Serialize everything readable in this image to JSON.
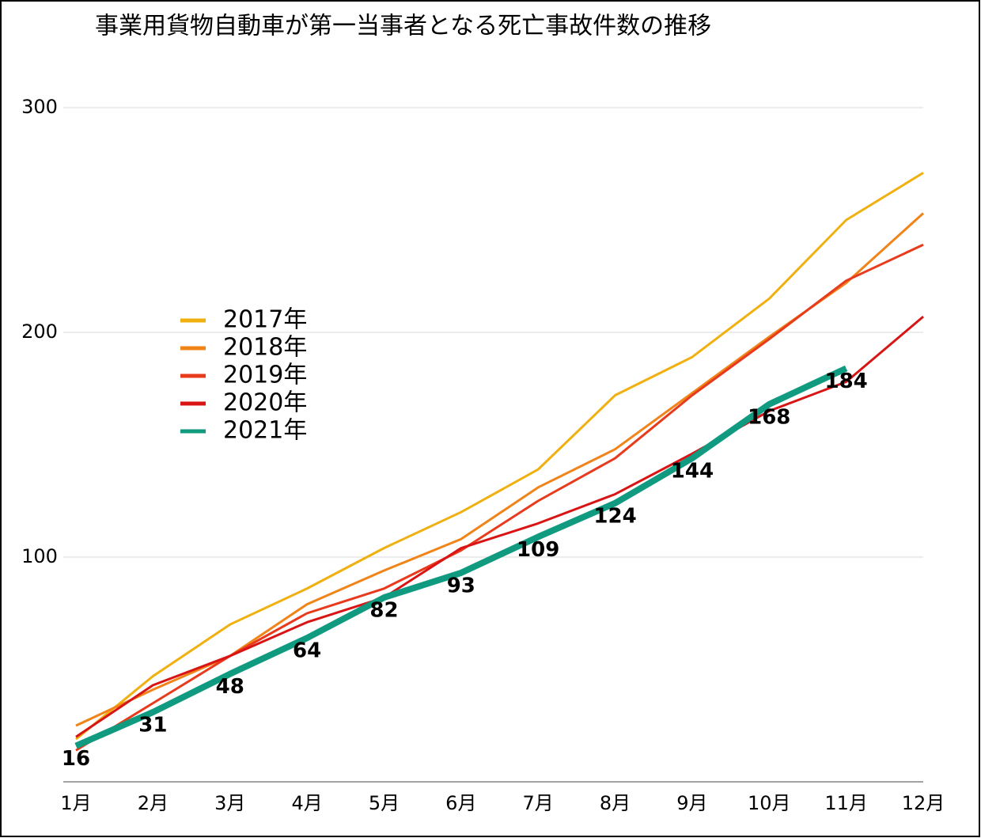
{
  "chart_data": {
    "type": "line",
    "title": "事業用貨物自動車が第一当事者となる死亡事故件数の推移",
    "categories": [
      "1月",
      "2月",
      "3月",
      "4月",
      "5月",
      "6月",
      "7月",
      "8月",
      "9月",
      "10月",
      "11月",
      "12月"
    ],
    "series": [
      {
        "name": "2017年",
        "color": "#f0b010",
        "width": 3,
        "values": [
          19,
          47,
          70,
          86,
          104,
          120,
          139,
          172,
          189,
          215,
          250,
          271
        ]
      },
      {
        "name": "2018年",
        "color": "#f08418",
        "width": 3,
        "values": [
          25,
          41,
          56,
          79,
          94,
          108,
          131,
          148,
          173,
          198,
          222,
          253
        ]
      },
      {
        "name": "2019年",
        "color": "#e83a1c",
        "width": 3,
        "values": [
          14,
          35,
          56,
          75,
          86,
          103,
          125,
          144,
          172,
          197,
          223,
          239
        ]
      },
      {
        "name": "2020年",
        "color": "#d81414",
        "width": 3,
        "values": [
          20,
          43,
          56,
          71,
          82,
          104,
          115,
          128,
          146,
          165,
          178,
          207
        ]
      },
      {
        "name": "2021年",
        "color": "#109a80",
        "width": 8,
        "data_labels": true,
        "values": [
          16,
          31,
          48,
          64,
          82,
          93,
          109,
          124,
          144,
          168,
          184,
          null
        ]
      }
    ],
    "ylim": [
      0,
      300
    ],
    "yticks": [
      100,
      200,
      300
    ],
    "grid": true,
    "legend": "left"
  }
}
